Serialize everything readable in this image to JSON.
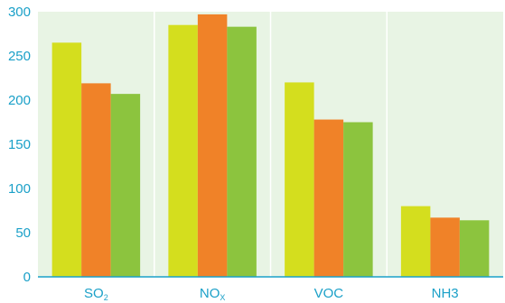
{
  "chart_data": {
    "type": "bar",
    "categories": [
      {
        "base": "SO",
        "sub": "2"
      },
      {
        "base": "NO",
        "sub": "X"
      },
      {
        "base": "VOC",
        "sub": ""
      },
      {
        "base": "NH3",
        "sub": ""
      }
    ],
    "series": [
      {
        "values": [
          265,
          285,
          220,
          80
        ],
        "color": "#d4de1e"
      },
      {
        "values": [
          219,
          297,
          178,
          67
        ],
        "color": "#f08228"
      },
      {
        "values": [
          207,
          283,
          175,
          64
        ],
        "color": "#8cc43e"
      }
    ],
    "ylim": [
      0,
      300
    ],
    "yticks": [
      0,
      50,
      100,
      150,
      200,
      250,
      300
    ],
    "grid": "vertical separators between categories",
    "colors": {
      "panel_background": "#e8f4e4",
      "grid": "#ffffff",
      "axis": "#1aa0c8",
      "text": "#1aa0c8"
    }
  }
}
